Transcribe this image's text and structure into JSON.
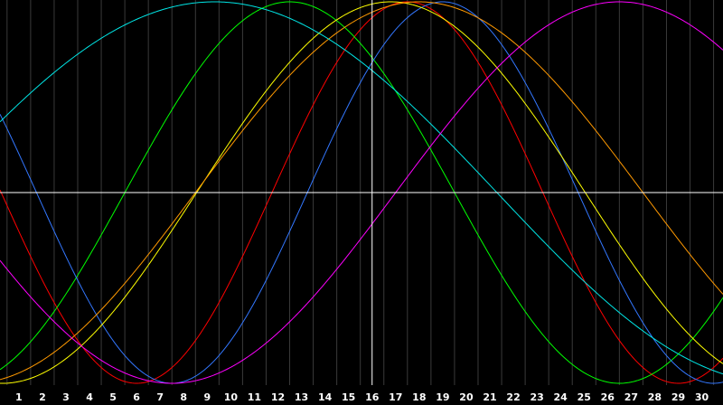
{
  "chart_data": {
    "type": "line",
    "x_ticks": [
      "1",
      "2",
      "3",
      "4",
      "5",
      "6",
      "7",
      "8",
      "9",
      "10",
      "11",
      "12",
      "13",
      "14",
      "15",
      "16",
      "17",
      "18",
      "19",
      "20",
      "21",
      "22",
      "23",
      "24",
      "25",
      "26",
      "27",
      "28",
      "29",
      "30"
    ],
    "xlim": [
      0.2,
      30.9
    ],
    "ylim": [
      -1,
      1
    ],
    "grid": true,
    "marker_day": 16,
    "series": [
      {
        "color": "#ff0000",
        "period": 23,
        "phase_day": 17.5
      },
      {
        "color": "#00ff00",
        "period": 28,
        "phase_day": 12.5
      },
      {
        "color": "#3377ff",
        "period": 23,
        "phase_day": 19.0
      },
      {
        "color": "#ffff00",
        "period": 33,
        "phase_day": 16.8
      },
      {
        "color": "#ff9900",
        "period": 38,
        "phase_day": 18.0
      },
      {
        "color": "#00e5e5",
        "period": 48,
        "phase_day": 9.3
      },
      {
        "color": "#ff00ff",
        "period": 38,
        "phase_day": 26.5
      }
    ]
  }
}
